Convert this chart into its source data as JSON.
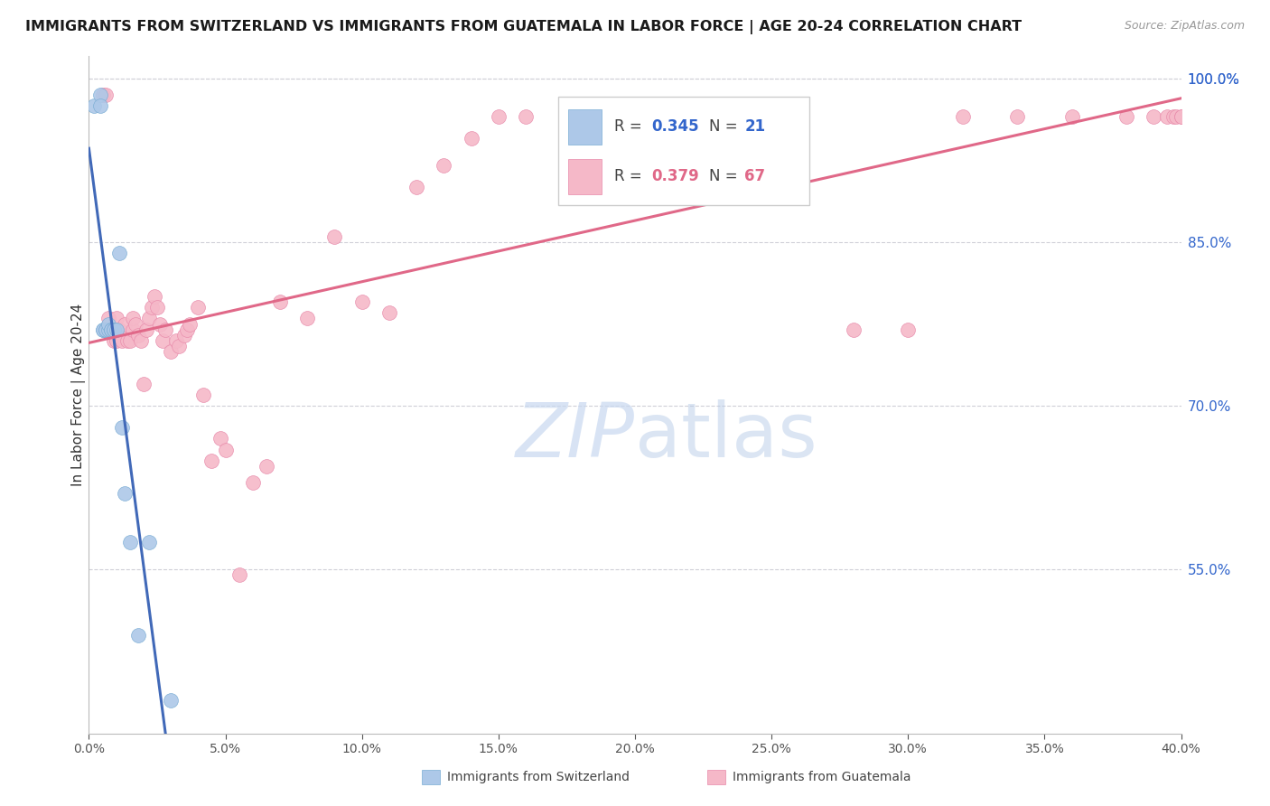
{
  "title": "IMMIGRANTS FROM SWITZERLAND VS IMMIGRANTS FROM GUATEMALA IN LABOR FORCE | AGE 20-24 CORRELATION CHART",
  "source": "Source: ZipAtlas.com",
  "ylabel": "In Labor Force | Age 20-24",
  "xlim": [
    0.0,
    0.4
  ],
  "ylim": [
    0.4,
    1.02
  ],
  "yticks": [
    0.55,
    0.7,
    0.85,
    1.0
  ],
  "xticks": [
    0.0,
    0.05,
    0.1,
    0.15,
    0.2,
    0.25,
    0.3,
    0.35,
    0.4
  ],
  "swiss_R": 0.345,
  "swiss_N": 21,
  "guate_R": 0.379,
  "guate_N": 67,
  "swiss_color": "#adc8e8",
  "swiss_edge_color": "#7aadd4",
  "swiss_line_color": "#4169b8",
  "guate_color": "#f5b8c8",
  "guate_edge_color": "#e88aaa",
  "guate_line_color": "#e06888",
  "watermark_color": "#c8d8f0",
  "swiss_x": [
    0.002,
    0.004,
    0.004,
    0.005,
    0.005,
    0.006,
    0.006,
    0.007,
    0.007,
    0.008,
    0.008,
    0.009,
    0.009,
    0.01,
    0.011,
    0.012,
    0.013,
    0.015,
    0.018,
    0.022,
    0.03
  ],
  "swiss_y": [
    0.975,
    0.985,
    0.975,
    0.77,
    0.77,
    0.77,
    0.77,
    0.77,
    0.775,
    0.77,
    0.77,
    0.77,
    0.77,
    0.77,
    0.84,
    0.68,
    0.62,
    0.575,
    0.49,
    0.575,
    0.43
  ],
  "guate_x": [
    0.005,
    0.006,
    0.007,
    0.008,
    0.009,
    0.01,
    0.01,
    0.011,
    0.012,
    0.013,
    0.014,
    0.015,
    0.016,
    0.016,
    0.017,
    0.018,
    0.019,
    0.02,
    0.021,
    0.022,
    0.023,
    0.024,
    0.025,
    0.026,
    0.027,
    0.028,
    0.03,
    0.032,
    0.033,
    0.035,
    0.036,
    0.037,
    0.04,
    0.042,
    0.045,
    0.048,
    0.05,
    0.055,
    0.06,
    0.065,
    0.07,
    0.08,
    0.09,
    0.1,
    0.11,
    0.12,
    0.13,
    0.14,
    0.15,
    0.16,
    0.18,
    0.2,
    0.22,
    0.24,
    0.26,
    0.28,
    0.3,
    0.32,
    0.34,
    0.36,
    0.38,
    0.39,
    0.395,
    0.397,
    0.398,
    0.4,
    0.4
  ],
  "guate_y": [
    0.985,
    0.985,
    0.78,
    0.77,
    0.76,
    0.76,
    0.78,
    0.77,
    0.76,
    0.775,
    0.76,
    0.76,
    0.77,
    0.78,
    0.775,
    0.765,
    0.76,
    0.72,
    0.77,
    0.78,
    0.79,
    0.8,
    0.79,
    0.775,
    0.76,
    0.77,
    0.75,
    0.76,
    0.755,
    0.765,
    0.77,
    0.775,
    0.79,
    0.71,
    0.65,
    0.67,
    0.66,
    0.545,
    0.63,
    0.645,
    0.795,
    0.78,
    0.855,
    0.795,
    0.785,
    0.9,
    0.92,
    0.945,
    0.965,
    0.965,
    0.965,
    0.965,
    0.965,
    0.965,
    0.965,
    0.77,
    0.77,
    0.965,
    0.965,
    0.965,
    0.965,
    0.965,
    0.965,
    0.965,
    0.965,
    0.965,
    0.965
  ]
}
